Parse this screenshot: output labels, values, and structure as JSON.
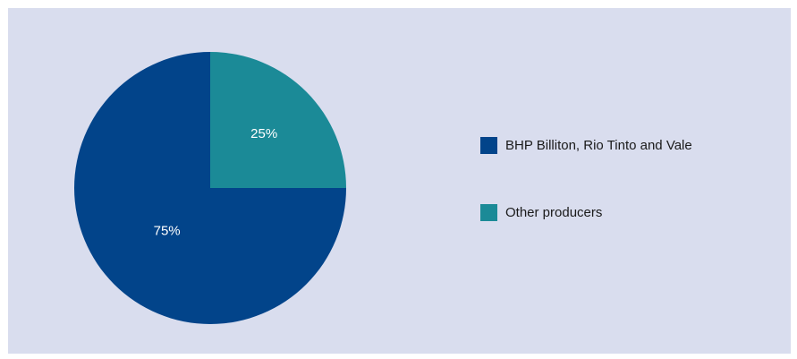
{
  "chart_data": {
    "type": "pie",
    "title": "",
    "slices": [
      {
        "label": "Other producers",
        "value": 25,
        "display": "25%",
        "color": "#1b8a97"
      },
      {
        "label": "BHP Billiton, Rio Tinto and Vale",
        "value": 75,
        "display": "75%",
        "color": "#02448a"
      }
    ],
    "legend_position": "right",
    "legend": [
      {
        "label": "BHP Billiton, Rio Tinto and Vale",
        "color": "#02448a"
      },
      {
        "label": "Other producers",
        "color": "#1b8a97"
      }
    ]
  }
}
